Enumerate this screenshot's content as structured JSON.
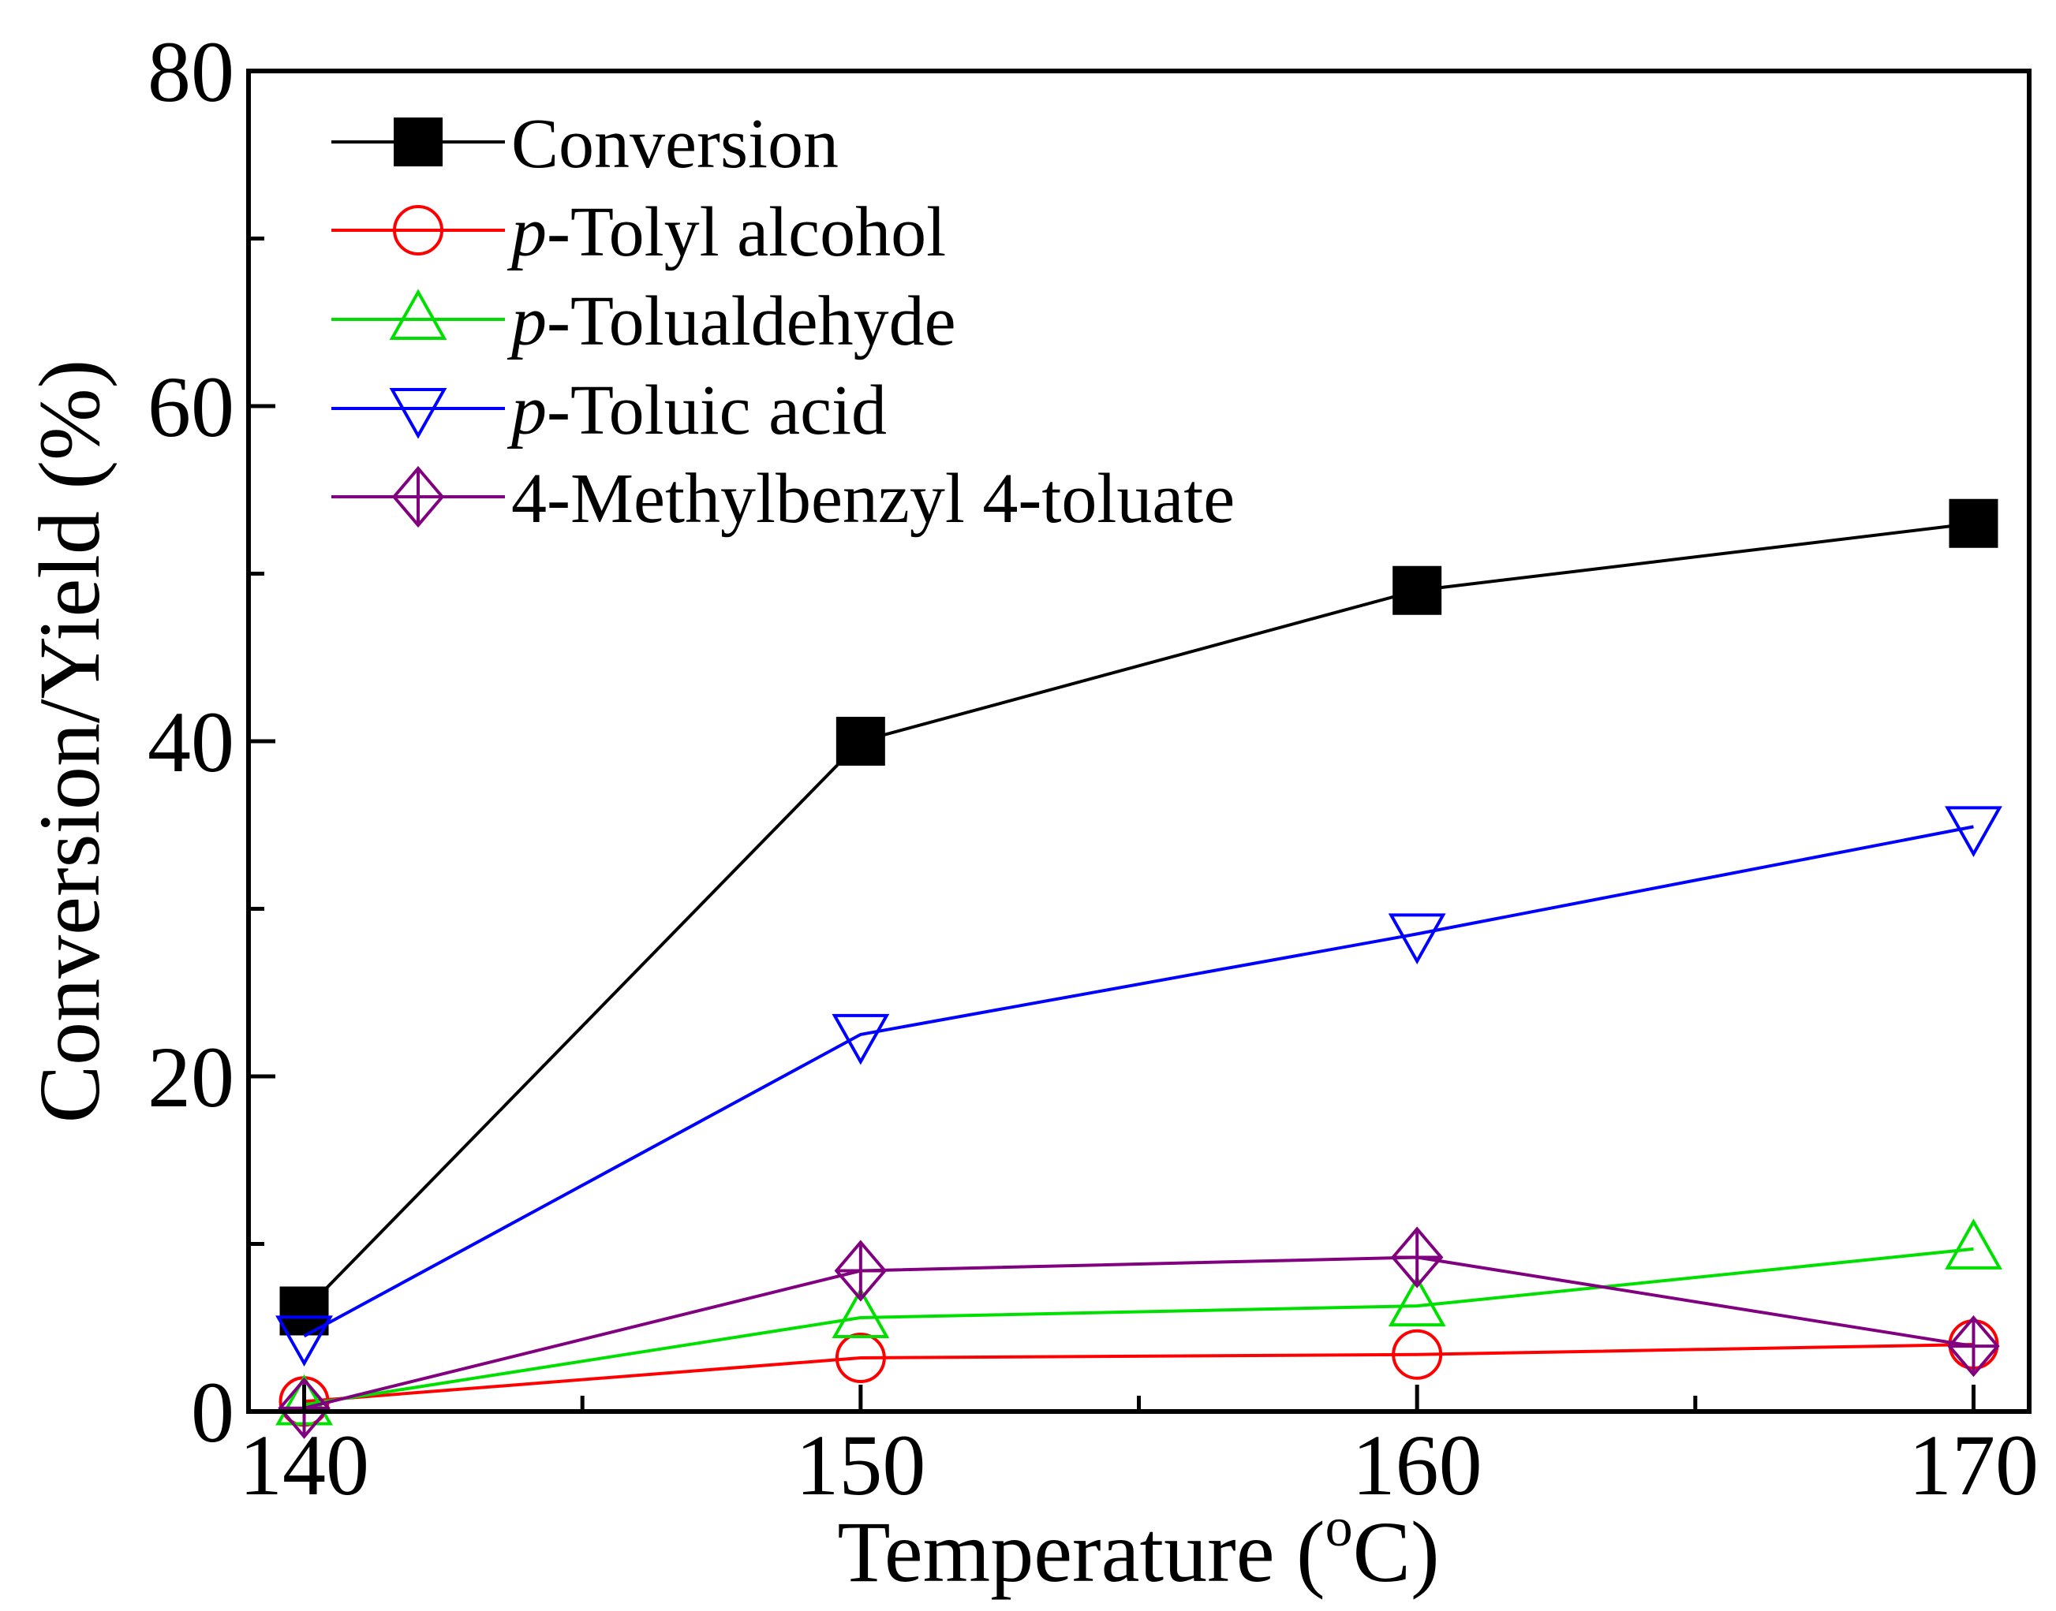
{
  "chart_data": {
    "type": "line",
    "title": "",
    "xlabel_main": "Temperature (",
    "xlabel_sup": "o",
    "xlabel_end": "C)",
    "ylabel": "Conversion/Yield (%)",
    "x": [
      140,
      150,
      160,
      170
    ],
    "xlim": [
      139,
      171
    ],
    "ylim": [
      0,
      80
    ],
    "x_ticks": [
      "140",
      "150",
      "160",
      "170"
    ],
    "y_ticks": [
      "0",
      "20",
      "40",
      "60",
      "80"
    ],
    "legend_position": "top-left",
    "series": [
      {
        "name": "Conversion",
        "prefix": "",
        "rest": "Conversion",
        "color": "#000000",
        "marker": "filled-square",
        "values": [
          6,
          40,
          49,
          53
        ]
      },
      {
        "name": "p-Tolyl alcohol",
        "prefix": "p",
        "rest": "-Tolyl alcohol",
        "color": "#ff0000",
        "marker": "open-circle",
        "values": [
          0.6,
          3.2,
          3.4,
          4.0
        ]
      },
      {
        "name": "p-Tolualdehyde",
        "prefix": "p",
        "rest": "-Tolualdehyde",
        "color": "#00e000",
        "marker": "open-triangle-up",
        "values": [
          0.4,
          5.6,
          6.3,
          9.7
        ]
      },
      {
        "name": "p-Toluic acid",
        "prefix": "p",
        "rest": "-Toluic acid",
        "color": "#0000ff",
        "marker": "open-triangle-down",
        "values": [
          4.5,
          22.5,
          28.5,
          34.9
        ]
      },
      {
        "name": "4-Methylbenzyl 4-toluate",
        "prefix": "",
        "rest": "4-Methylbenzyl 4-toluate",
        "color": "#800080",
        "marker": "open-diamond-cross",
        "values": [
          0.2,
          8.4,
          9.2,
          3.9
        ]
      }
    ]
  }
}
